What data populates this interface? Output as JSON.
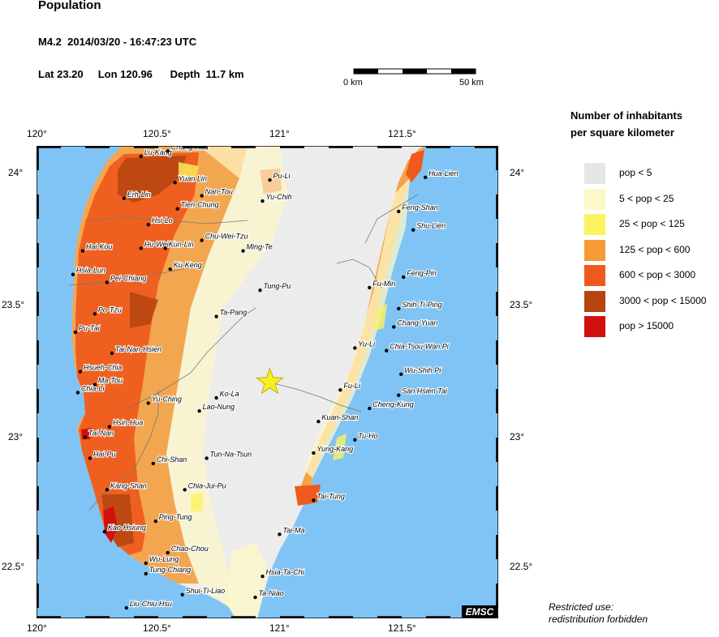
{
  "header": {
    "title": "Population",
    "event": "M4.2  2014/03/20 - 16:47:23 UTC",
    "location": "Lat 23.20     Lon 120.96      Depth  11.7 km"
  },
  "scale": {
    "start_label": "0 km",
    "end_label": "50 km"
  },
  "axes": {
    "top": [
      "120°",
      "120.5°",
      "121°",
      "121.5°"
    ],
    "bottom": [
      "120°",
      "120.5°",
      "121°",
      "121.5°"
    ],
    "left": [
      "24°",
      "23.5°",
      "23°",
      "22.5°"
    ],
    "right": [
      "24°",
      "23.5°",
      "23°",
      "22.5°"
    ]
  },
  "legend": {
    "title_line1": "Number of inhabitants",
    "title_line2": "per square kilometer",
    "items": [
      {
        "label": "pop < 5",
        "color": "#e6e6e6"
      },
      {
        "label": "5 < pop < 25",
        "color": "#fdf8c8"
      },
      {
        "label": "25 < pop < 125",
        "color": "#fbf35f"
      },
      {
        "label": "125 < pop < 600",
        "color": "#f59a35"
      },
      {
        "label": "600 < pop < 3000",
        "color": "#ef5a1c"
      },
      {
        "label": "3000 < pop < 15000",
        "color": "#b54411"
      },
      {
        "label": "pop > 15000",
        "color": "#d21010"
      }
    ]
  },
  "colors": {
    "sea": "#7fc4f5",
    "epicenter": "#f6ee22"
  },
  "cities": [
    {
      "name": "Lu-Kang",
      "lon": 120.43,
      "lat": 24.06
    },
    {
      "name": "Yuan Lin",
      "lon": 120.57,
      "lat": 23.96
    },
    {
      "name": "Erh-Lin",
      "lon": 120.36,
      "lat": 23.9
    },
    {
      "name": "Nan-Tou",
      "lon": 120.68,
      "lat": 23.91
    },
    {
      "name": "Tien-Chung",
      "lon": 120.58,
      "lat": 23.86
    },
    {
      "name": "Pu-Li",
      "lon": 120.96,
      "lat": 23.97
    },
    {
      "name": "Yu-Chih",
      "lon": 120.93,
      "lat": 23.89
    },
    {
      "name": "Hua-Lien",
      "lon": 121.6,
      "lat": 23.98
    },
    {
      "name": "Hsi-Lo",
      "lon": 120.46,
      "lat": 23.8
    },
    {
      "name": "Chu-Wei-Tzu",
      "lon": 120.68,
      "lat": 23.74
    },
    {
      "name": "Feng-Shan",
      "lon": 121.49,
      "lat": 23.85
    },
    {
      "name": "Shu-Lien",
      "lon": 121.55,
      "lat": 23.78
    },
    {
      "name": "Hai-Kou",
      "lon": 120.19,
      "lat": 23.7
    },
    {
      "name": "Hu-Wei",
      "lon": 120.43,
      "lat": 23.71
    },
    {
      "name": "Kun-Lin",
      "lon": 120.53,
      "lat": 23.71
    },
    {
      "name": "Ming-Te",
      "lon": 120.85,
      "lat": 23.7
    },
    {
      "name": "Ku-Keng",
      "lon": 120.55,
      "lat": 23.63
    },
    {
      "name": "Hsia-Lun",
      "lon": 120.15,
      "lat": 23.61
    },
    {
      "name": "Pei-Chiang",
      "lon": 120.29,
      "lat": 23.58
    },
    {
      "name": "Feng-Pin",
      "lon": 121.51,
      "lat": 23.6
    },
    {
      "name": "Fu-Min",
      "lon": 121.37,
      "lat": 23.56
    },
    {
      "name": "Tung-Pu",
      "lon": 120.92,
      "lat": 23.55
    },
    {
      "name": "Po-Tzu",
      "lon": 120.24,
      "lat": 23.46
    },
    {
      "name": "Ta-Pang",
      "lon": 120.74,
      "lat": 23.45
    },
    {
      "name": "Shih-Ti-Ping",
      "lon": 121.49,
      "lat": 23.48
    },
    {
      "name": "Chang-Yuan",
      "lon": 121.47,
      "lat": 23.41
    },
    {
      "name": "Pu-Tai",
      "lon": 120.16,
      "lat": 23.39
    },
    {
      "name": "Yu-Li",
      "lon": 121.31,
      "lat": 23.33
    },
    {
      "name": "Chia-Tsou-Wan Pi",
      "lon": 121.44,
      "lat": 23.32
    },
    {
      "name": "Tai-Nan-Hsien",
      "lon": 120.31,
      "lat": 23.31
    },
    {
      "name": "Hsueh-Chia",
      "lon": 120.18,
      "lat": 23.24
    },
    {
      "name": "Wu-Shih Pi",
      "lon": 121.5,
      "lat": 23.23
    },
    {
      "name": "Ma-Tou",
      "lon": 120.24,
      "lat": 23.19
    },
    {
      "name": "Chia-Li",
      "lon": 120.17,
      "lat": 23.16
    },
    {
      "name": "Fu-Li",
      "lon": 121.25,
      "lat": 23.17
    },
    {
      "name": "San Hsien Tai",
      "lon": 121.49,
      "lat": 23.15
    },
    {
      "name": "Ko-La",
      "lon": 120.74,
      "lat": 23.14
    },
    {
      "name": "Yu-Ching",
      "lon": 120.46,
      "lat": 23.12
    },
    {
      "name": "Cheng-Kung",
      "lon": 121.37,
      "lat": 23.1
    },
    {
      "name": "Lao-Nung",
      "lon": 120.67,
      "lat": 23.09
    },
    {
      "name": "Hsin-Hua",
      "lon": 120.3,
      "lat": 23.03
    },
    {
      "name": "Kuan-Shan",
      "lon": 121.16,
      "lat": 23.05
    },
    {
      "name": "Tai-Nan",
      "lon": 120.2,
      "lat": 22.99
    },
    {
      "name": "Tu-Ho",
      "lon": 121.31,
      "lat": 22.98
    },
    {
      "name": "Yung-Kang",
      "lon": 121.14,
      "lat": 22.93
    },
    {
      "name": "Hai-Pu",
      "lon": 120.22,
      "lat": 22.91
    },
    {
      "name": "Tun-Na-Tsun",
      "lon": 120.7,
      "lat": 22.91
    },
    {
      "name": "Chi-Shan",
      "lon": 120.48,
      "lat": 22.89
    },
    {
      "name": "Kang-Shan",
      "lon": 120.29,
      "lat": 22.79
    },
    {
      "name": "Chia-Jui-Pu",
      "lon": 120.61,
      "lat": 22.79
    },
    {
      "name": "Tai-Tung",
      "lon": 121.14,
      "lat": 22.75
    },
    {
      "name": "Ping-Tung",
      "lon": 120.49,
      "lat": 22.67
    },
    {
      "name": "Kao-Hsiung",
      "lon": 120.28,
      "lat": 22.63
    },
    {
      "name": "Tai-Ma",
      "lon": 121.0,
      "lat": 22.62
    },
    {
      "name": "Chao-Chou",
      "lon": 120.54,
      "lat": 22.55
    },
    {
      "name": "Wu-Lung",
      "lon": 120.45,
      "lat": 22.51
    },
    {
      "name": "Tung-Chiang",
      "lon": 120.45,
      "lat": 22.47
    },
    {
      "name": "Hsia-Ta-Chi",
      "lon": 120.93,
      "lat": 22.46
    },
    {
      "name": "Shui-Ti-Liao",
      "lon": 120.6,
      "lat": 22.39
    },
    {
      "name": "Ta-Niao",
      "lon": 120.9,
      "lat": 22.38
    },
    {
      "name": "Liu-Chiu Hsu",
      "lon": 120.37,
      "lat": 22.34
    },
    {
      "name": "Chang-Hua",
      "lon": 120.54,
      "lat": 24.08
    }
  ],
  "epicenter": {
    "lon": 120.96,
    "lat": 23.2
  },
  "map_extent": {
    "lon_min": 120.0,
    "lon_max": 121.9,
    "lat_min": 22.3,
    "lat_max": 24.1
  },
  "watermark": "EMSC",
  "notice_line1": "Restricted use:",
  "notice_line2": "redistribution forbidden"
}
